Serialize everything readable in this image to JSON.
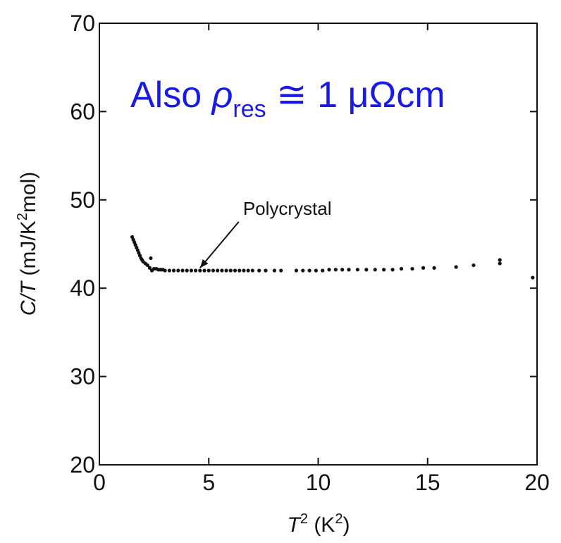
{
  "chart_data": {
    "type": "scatter",
    "x_ticks": [
      0,
      5,
      10,
      15,
      20
    ],
    "y_ticks": [
      20,
      30,
      40,
      50,
      60,
      70
    ],
    "xlim": [
      0,
      20
    ],
    "ylim": [
      20,
      70
    ],
    "xlabel": {
      "main": "T",
      "sup": "2",
      "unit": " (K",
      "unit_sup": "2",
      "unit_end": ")"
    },
    "ylabel": {
      "pre": "C/T",
      "mid": " (mJ/K",
      "sup": "2",
      "post": "mol)"
    },
    "annotation": {
      "text": "Polycrystal",
      "arrow_target": [
        4.6,
        42.3
      ],
      "text_anchor": [
        6.5,
        48.0
      ]
    },
    "overlay_text": {
      "prefix": "Also ",
      "symbol": "ρ",
      "subscript": "res",
      "suffix": " ≅ 1 μΩcm",
      "color": "#1a1ae6"
    },
    "grid": false,
    "series": [
      {
        "color": "#111111",
        "points": [
          [
            1.5,
            45.8
          ],
          [
            1.55,
            45.5
          ],
          [
            1.6,
            45.2
          ],
          [
            1.65,
            44.9
          ],
          [
            1.7,
            44.6
          ],
          [
            1.75,
            44.3
          ],
          [
            1.8,
            44.0
          ],
          [
            1.85,
            43.7
          ],
          [
            1.9,
            43.4
          ],
          [
            1.95,
            43.2
          ],
          [
            2.0,
            43.0
          ],
          [
            2.1,
            42.8
          ],
          [
            2.2,
            42.6
          ],
          [
            2.3,
            42.3
          ],
          [
            2.35,
            43.4
          ],
          [
            2.4,
            42.0
          ],
          [
            2.5,
            42.2
          ],
          [
            2.6,
            42.2
          ],
          [
            2.7,
            42.1
          ],
          [
            2.8,
            42.1
          ],
          [
            2.9,
            42.1
          ],
          [
            3.0,
            42.0
          ],
          [
            3.2,
            42.0
          ],
          [
            3.4,
            42.0
          ],
          [
            3.6,
            42.0
          ],
          [
            3.8,
            42.0
          ],
          [
            4.0,
            42.0
          ],
          [
            4.2,
            42.0
          ],
          [
            4.4,
            42.0
          ],
          [
            4.6,
            42.0
          ],
          [
            4.8,
            42.0
          ],
          [
            5.0,
            42.0
          ],
          [
            5.2,
            42.0
          ],
          [
            5.4,
            42.0
          ],
          [
            5.6,
            42.0
          ],
          [
            5.8,
            42.0
          ],
          [
            6.0,
            42.0
          ],
          [
            6.2,
            42.0
          ],
          [
            6.4,
            42.0
          ],
          [
            6.6,
            42.0
          ],
          [
            6.8,
            42.0
          ],
          [
            7.0,
            42.0
          ],
          [
            7.3,
            42.0
          ],
          [
            7.6,
            42.0
          ],
          [
            8.0,
            42.0
          ],
          [
            8.3,
            42.0
          ],
          [
            9.0,
            42.0
          ],
          [
            9.3,
            42.0
          ],
          [
            9.6,
            42.0
          ],
          [
            9.9,
            42.0
          ],
          [
            10.2,
            42.0
          ],
          [
            10.5,
            42.1
          ],
          [
            10.8,
            42.1
          ],
          [
            11.1,
            42.1
          ],
          [
            11.4,
            42.1
          ],
          [
            11.8,
            42.1
          ],
          [
            12.2,
            42.1
          ],
          [
            12.6,
            42.1
          ],
          [
            13.0,
            42.1
          ],
          [
            13.4,
            42.1
          ],
          [
            13.8,
            42.2
          ],
          [
            14.3,
            42.2
          ],
          [
            14.8,
            42.3
          ],
          [
            15.3,
            42.3
          ],
          [
            16.3,
            42.4
          ],
          [
            17.1,
            42.6
          ],
          [
            18.3,
            42.8
          ],
          [
            18.3,
            43.2
          ],
          [
            19.8,
            41.2
          ]
        ]
      }
    ]
  }
}
